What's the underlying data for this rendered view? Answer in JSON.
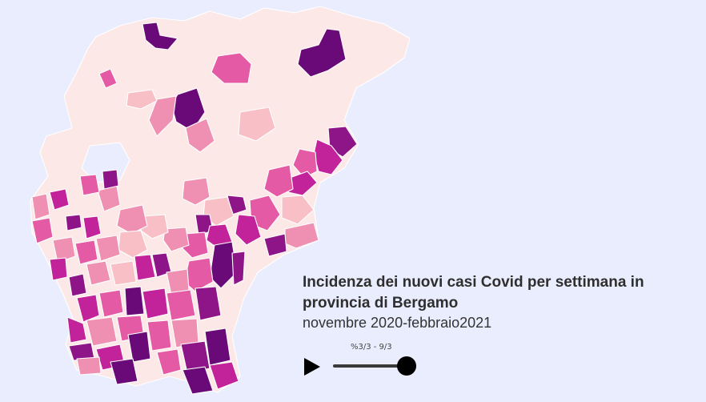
{
  "header": {
    "title": "Incidenza dei nuovi casi Covid per settimana in provincia di Bergamo",
    "subtitle": "novembre 2020-febbraio2021"
  },
  "player": {
    "week_label": "%3/3 - 9/3",
    "progress": 1.0,
    "play_icon": "play-icon"
  },
  "map": {
    "colors": {
      "background": "#eaedfd",
      "very_low": "#fde8e8",
      "low": "#f9bfc6",
      "medium": "#ef8fb2",
      "high": "#e55aa4",
      "very_high": "#c2229a",
      "extreme": "#8e1588",
      "max": "#6a0a78"
    }
  }
}
